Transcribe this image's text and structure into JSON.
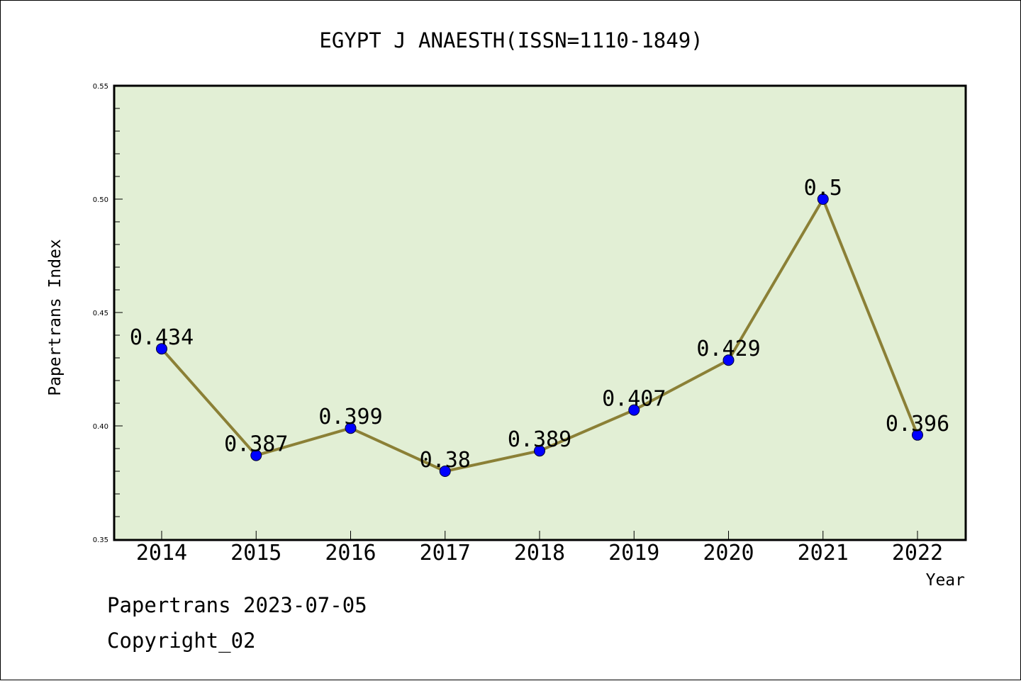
{
  "chart_data": {
    "type": "line",
    "title": "EGYPT J ANAESTH(ISSN=1110-1849)",
    "xlabel": "Year",
    "ylabel": "Papertrans Index",
    "categories": [
      "2014",
      "2015",
      "2016",
      "2017",
      "2018",
      "2019",
      "2020",
      "2021",
      "2022"
    ],
    "values": [
      0.434,
      0.387,
      0.399,
      0.38,
      0.389,
      0.407,
      0.429,
      0.5,
      0.396
    ],
    "data_labels": [
      "0.434",
      "0.387",
      "0.399",
      "0.38",
      "0.389",
      "0.407",
      "0.429",
      "0.5",
      "0.396"
    ],
    "ylim": [
      0.35,
      0.55
    ],
    "yticks": [
      "0.35",
      "0.40",
      "0.45",
      "0.50",
      "0.55"
    ],
    "grid": false,
    "colors": {
      "plot_background": "#e2efd5",
      "line": "#8b8036",
      "marker": "#0000ff"
    }
  },
  "footer": {
    "line1": "Papertrans 2023-07-05",
    "line2": "Copyright_02"
  }
}
